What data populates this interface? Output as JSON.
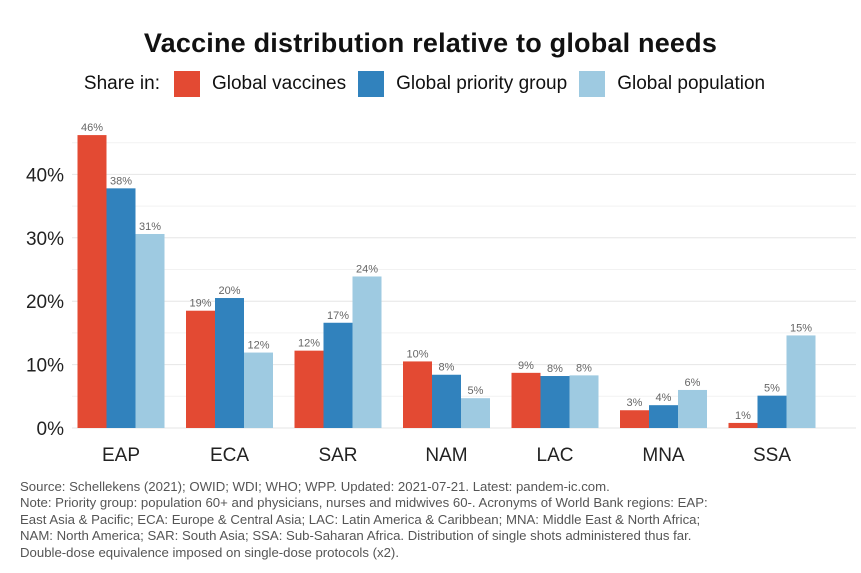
{
  "chart_data": {
    "type": "bar",
    "title": "Vaccine distribution relative to global needs",
    "legend_title": "Share in:",
    "legend_position": "top",
    "categories": [
      "EAP",
      "ECA",
      "SAR",
      "NAM",
      "LAC",
      "MNA",
      "SSA"
    ],
    "series": [
      {
        "name": "Global vaccines",
        "color": "#e34a33",
        "values": [
          46.2,
          18.5,
          12.2,
          10.5,
          8.7,
          2.8,
          0.8
        ],
        "labels": [
          "46%",
          "19%",
          "12%",
          "10%",
          "9%",
          "3%",
          "1%"
        ]
      },
      {
        "name": "Global priority group",
        "color": "#3182bd",
        "values": [
          37.8,
          20.5,
          16.6,
          8.4,
          8.2,
          3.6,
          5.1
        ],
        "labels": [
          "38%",
          "20%",
          "17%",
          "8%",
          "8%",
          "4%",
          "5%"
        ]
      },
      {
        "name": "Global population",
        "color": "#9ecae1",
        "values": [
          30.6,
          11.9,
          23.9,
          4.7,
          8.3,
          6.0,
          14.6
        ],
        "labels": [
          "31%",
          "12%",
          "24%",
          "5%",
          "8%",
          "6%",
          "15%"
        ]
      }
    ],
    "yticks": [
      "0%",
      "10%",
      "20%",
      "30%",
      "40%"
    ],
    "ytick_values": [
      0,
      10,
      20,
      30,
      40
    ],
    "ylim": [
      0,
      47
    ],
    "grid": true
  },
  "notes": [
    "Source: Schellekens (2021); OWID; WDI; WHO; WPP. Updated: 2021-07-21. Latest: pandem-ic.com.",
    "Note: Priority group: population 60+ and physicians, nurses and midwives 60-. Acronyms of World Bank regions: EAP:",
    "East Asia & Pacific; ECA: Europe & Central Asia; LAC: Latin America & Caribbean; MNA: Middle East & North Africa;",
    "NAM: North America; SAR: South Asia; SSA: Sub-Saharan Africa. Distribution of single shots administered thus far.",
    "Double-dose equivalence imposed on single-dose protocols (x2)."
  ]
}
